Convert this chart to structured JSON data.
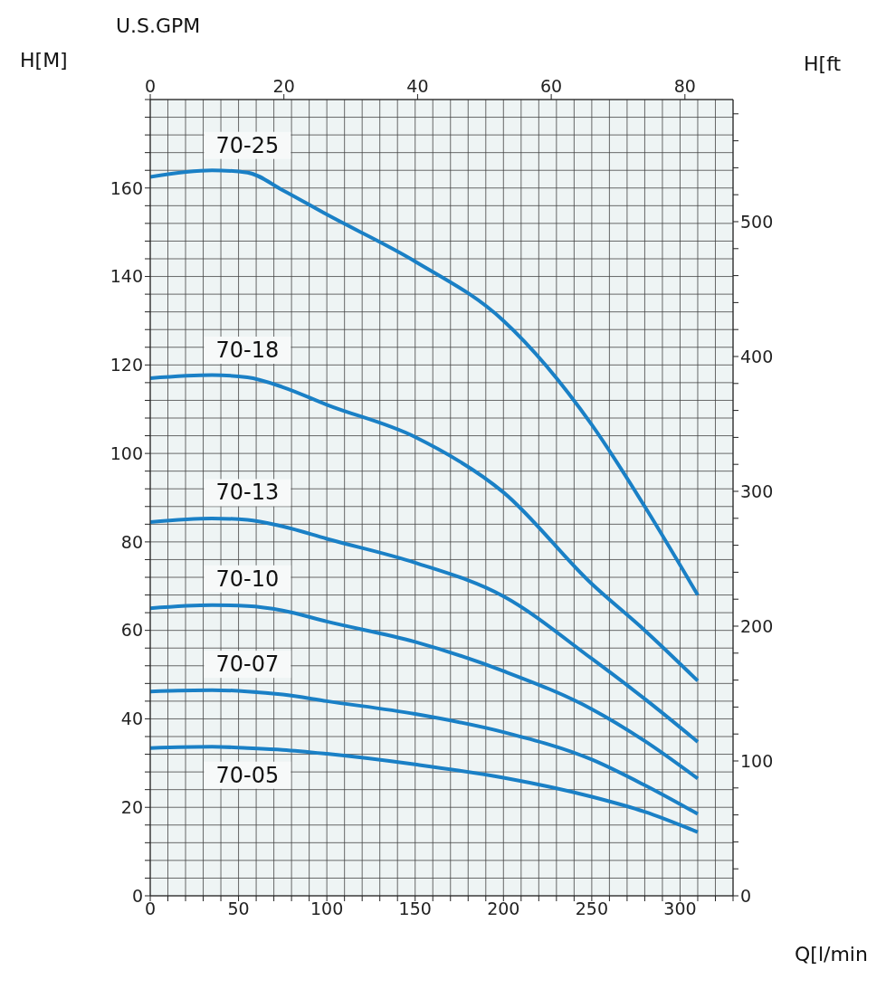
{
  "chart_data": {
    "type": "line",
    "xlabel": "Q[l/min",
    "ylabel": "H[M]",
    "y2label": "H[ft",
    "x2label": "U.S.GPM",
    "x": [
      0,
      35,
      55,
      75,
      100,
      150,
      200,
      250,
      280,
      310
    ],
    "series": [
      {
        "name": "70-25",
        "color": "#1a80c6",
        "values": [
          162.5,
          164,
          163.5,
          159.5,
          154,
          143.4,
          130,
          106.5,
          88,
          68
        ]
      },
      {
        "name": "70-18",
        "color": "#1a80c6",
        "values": [
          117,
          117.7,
          117.2,
          115,
          111,
          103.7,
          91.2,
          70.5,
          60,
          48.6
        ]
      },
      {
        "name": "70-13",
        "color": "#1a80c6",
        "values": [
          84.5,
          85.3,
          85,
          83.5,
          80.7,
          75.3,
          67.7,
          53.6,
          44.5,
          34.8
        ]
      },
      {
        "name": "70-10",
        "color": "#1a80c6",
        "values": [
          65,
          65.7,
          65.5,
          64.5,
          62,
          57.4,
          50.8,
          42.2,
          35,
          26.5
        ]
      },
      {
        "name": "70-07",
        "color": "#1a80c6",
        "values": [
          46.2,
          46.5,
          46.2,
          45.5,
          44,
          41.1,
          37,
          30.8,
          25,
          18.5
        ]
      },
      {
        "name": "70-05",
        "color": "#1a80c6",
        "values": [
          33.4,
          33.7,
          33.4,
          33,
          32.1,
          29.7,
          26.7,
          22.4,
          19,
          14.4
        ]
      }
    ],
    "xlim": [
      0,
      330
    ],
    "xticks": [
      0,
      {
        "value": 10,
        "label": null
      },
      {
        "value": 20,
        "label": null
      },
      {
        "value": 30,
        "label": null
      },
      {
        "value": 40,
        "label": null
      },
      50,
      {
        "value": 60,
        "label": null
      },
      {
        "value": 70,
        "label": null
      },
      {
        "value": 80,
        "label": null
      },
      {
        "value": 90,
        "label": null
      },
      100,
      {
        "value": 110,
        "label": null
      },
      {
        "value": 120,
        "label": null
      },
      {
        "value": 130,
        "label": null
      },
      {
        "value": 140,
        "label": null
      },
      150,
      {
        "value": 160,
        "label": null
      },
      {
        "value": 170,
        "label": null
      },
      {
        "value": 180,
        "label": null
      },
      {
        "value": 190,
        "label": null
      },
      200,
      {
        "value": 210,
        "label": null
      },
      {
        "value": 220,
        "label": null
      },
      {
        "value": 230,
        "label": null
      },
      {
        "value": 240,
        "label": null
      },
      250,
      {
        "value": 260,
        "label": null
      },
      {
        "value": 270,
        "label": null
      },
      {
        "value": 280,
        "label": null
      },
      {
        "value": 290,
        "label": null
      },
      300,
      {
        "value": 310,
        "label": null
      },
      {
        "value": 320,
        "label": null
      },
      {
        "value": 330,
        "label": null
      }
    ],
    "ylim": [
      0,
      180
    ],
    "yticks": [
      0,
      {
        "value": 4,
        "label": null
      },
      {
        "value": 8,
        "label": null
      },
      {
        "value": 12,
        "label": null
      },
      {
        "value": 16,
        "label": null
      },
      20,
      {
        "value": 24,
        "label": null
      },
      {
        "value": 28,
        "label": null
      },
      {
        "value": 32,
        "label": null
      },
      {
        "value": 36,
        "label": null
      },
      40,
      {
        "value": 44,
        "label": null
      },
      {
        "value": 48,
        "label": null
      },
      {
        "value": 52,
        "label": null
      },
      {
        "value": 56,
        "label": null
      },
      60,
      {
        "value": 64,
        "label": null
      },
      {
        "value": 68,
        "label": null
      },
      {
        "value": 72,
        "label": null
      },
      {
        "value": 76,
        "label": null
      },
      80,
      {
        "value": 84,
        "label": null
      },
      {
        "value": 88,
        "label": null
      },
      {
        "value": 92,
        "label": null
      },
      {
        "value": 96,
        "label": null
      },
      100,
      {
        "value": 104,
        "label": null
      },
      {
        "value": 108,
        "label": null
      },
      {
        "value": 112,
        "label": null
      },
      {
        "value": 116,
        "label": null
      },
      120,
      {
        "value": 124,
        "label": null
      },
      {
        "value": 128,
        "label": null
      },
      {
        "value": 132,
        "label": null
      },
      {
        "value": 136,
        "label": null
      },
      140,
      {
        "value": 144,
        "label": null
      },
      {
        "value": 148,
        "label": null
      },
      {
        "value": 152,
        "label": null
      },
      {
        "value": 156,
        "label": null
      },
      160,
      {
        "value": 164,
        "label": null
      },
      {
        "value": 168,
        "label": null
      },
      {
        "value": 172,
        "label": null
      },
      {
        "value": 176,
        "label": null
      },
      {
        "value": 180,
        "label": null
      }
    ],
    "y2lim": [
      0,
      590.6
    ],
    "y2ticks": [
      0,
      {
        "value": 20,
        "label": null
      },
      {
        "value": 40,
        "label": null
      },
      {
        "value": 60,
        "label": null
      },
      {
        "value": 80,
        "label": null
      },
      100,
      {
        "value": 120,
        "label": null
      },
      {
        "value": 140,
        "label": null
      },
      {
        "value": 160,
        "label": null
      },
      {
        "value": 180,
        "label": null
      },
      200,
      {
        "value": 220,
        "label": null
      },
      {
        "value": 240,
        "label": null
      },
      {
        "value": 260,
        "label": null
      },
      {
        "value": 280,
        "label": null
      },
      300,
      {
        "value": 320,
        "label": null
      },
      {
        "value": 340,
        "label": null
      },
      {
        "value": 360,
        "label": null
      },
      {
        "value": 380,
        "label": null
      },
      400,
      {
        "value": 420,
        "label": null
      },
      {
        "value": 440,
        "label": null
      },
      {
        "value": 460,
        "label": null
      },
      {
        "value": 480,
        "label": null
      },
      500,
      {
        "value": 520,
        "label": null
      },
      {
        "value": 540,
        "label": null
      },
      {
        "value": 560,
        "label": null
      },
      {
        "value": 580,
        "label": null
      }
    ],
    "x2lim": [
      0,
      87.2
    ],
    "x2ticks": [
      0,
      20,
      40,
      60,
      80
    ],
    "grid": true,
    "legend": false,
    "marker": "none",
    "line_style": "solid"
  }
}
